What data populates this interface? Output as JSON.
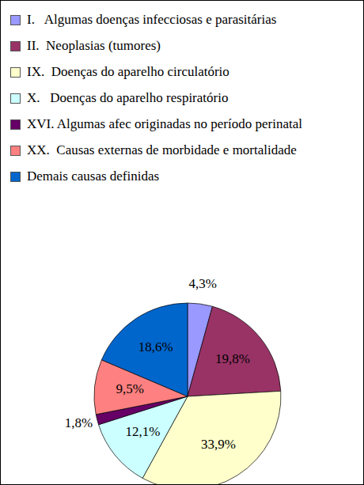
{
  "chart_data": {
    "type": "pie",
    "categories": [
      "I.   Algumas doenças infecciosas e parasitárias",
      "II.  Neoplasias (tumores)",
      "IX.  Doenças do aparelho circulatório",
      "X.   Doenças do aparelho respiratório",
      "XVI. Algumas afec originadas no período perinatal",
      "XX.  Causas externas de morbidade e mortalidade",
      "Demais causas definidas"
    ],
    "values": [
      4.3,
      19.8,
      33.9,
      12.1,
      1.8,
      9.5,
      18.6
    ],
    "value_labels": [
      "4,3%",
      "19,8%",
      "33,9%",
      "12,1%",
      "1,8%",
      "9,5%",
      "18,6%"
    ],
    "colors": [
      "#9999ff",
      "#993366",
      "#ffffcc",
      "#ccffff",
      "#660066",
      "#ff8080",
      "#0066cc"
    ],
    "data_labels": true,
    "legend": "top"
  }
}
